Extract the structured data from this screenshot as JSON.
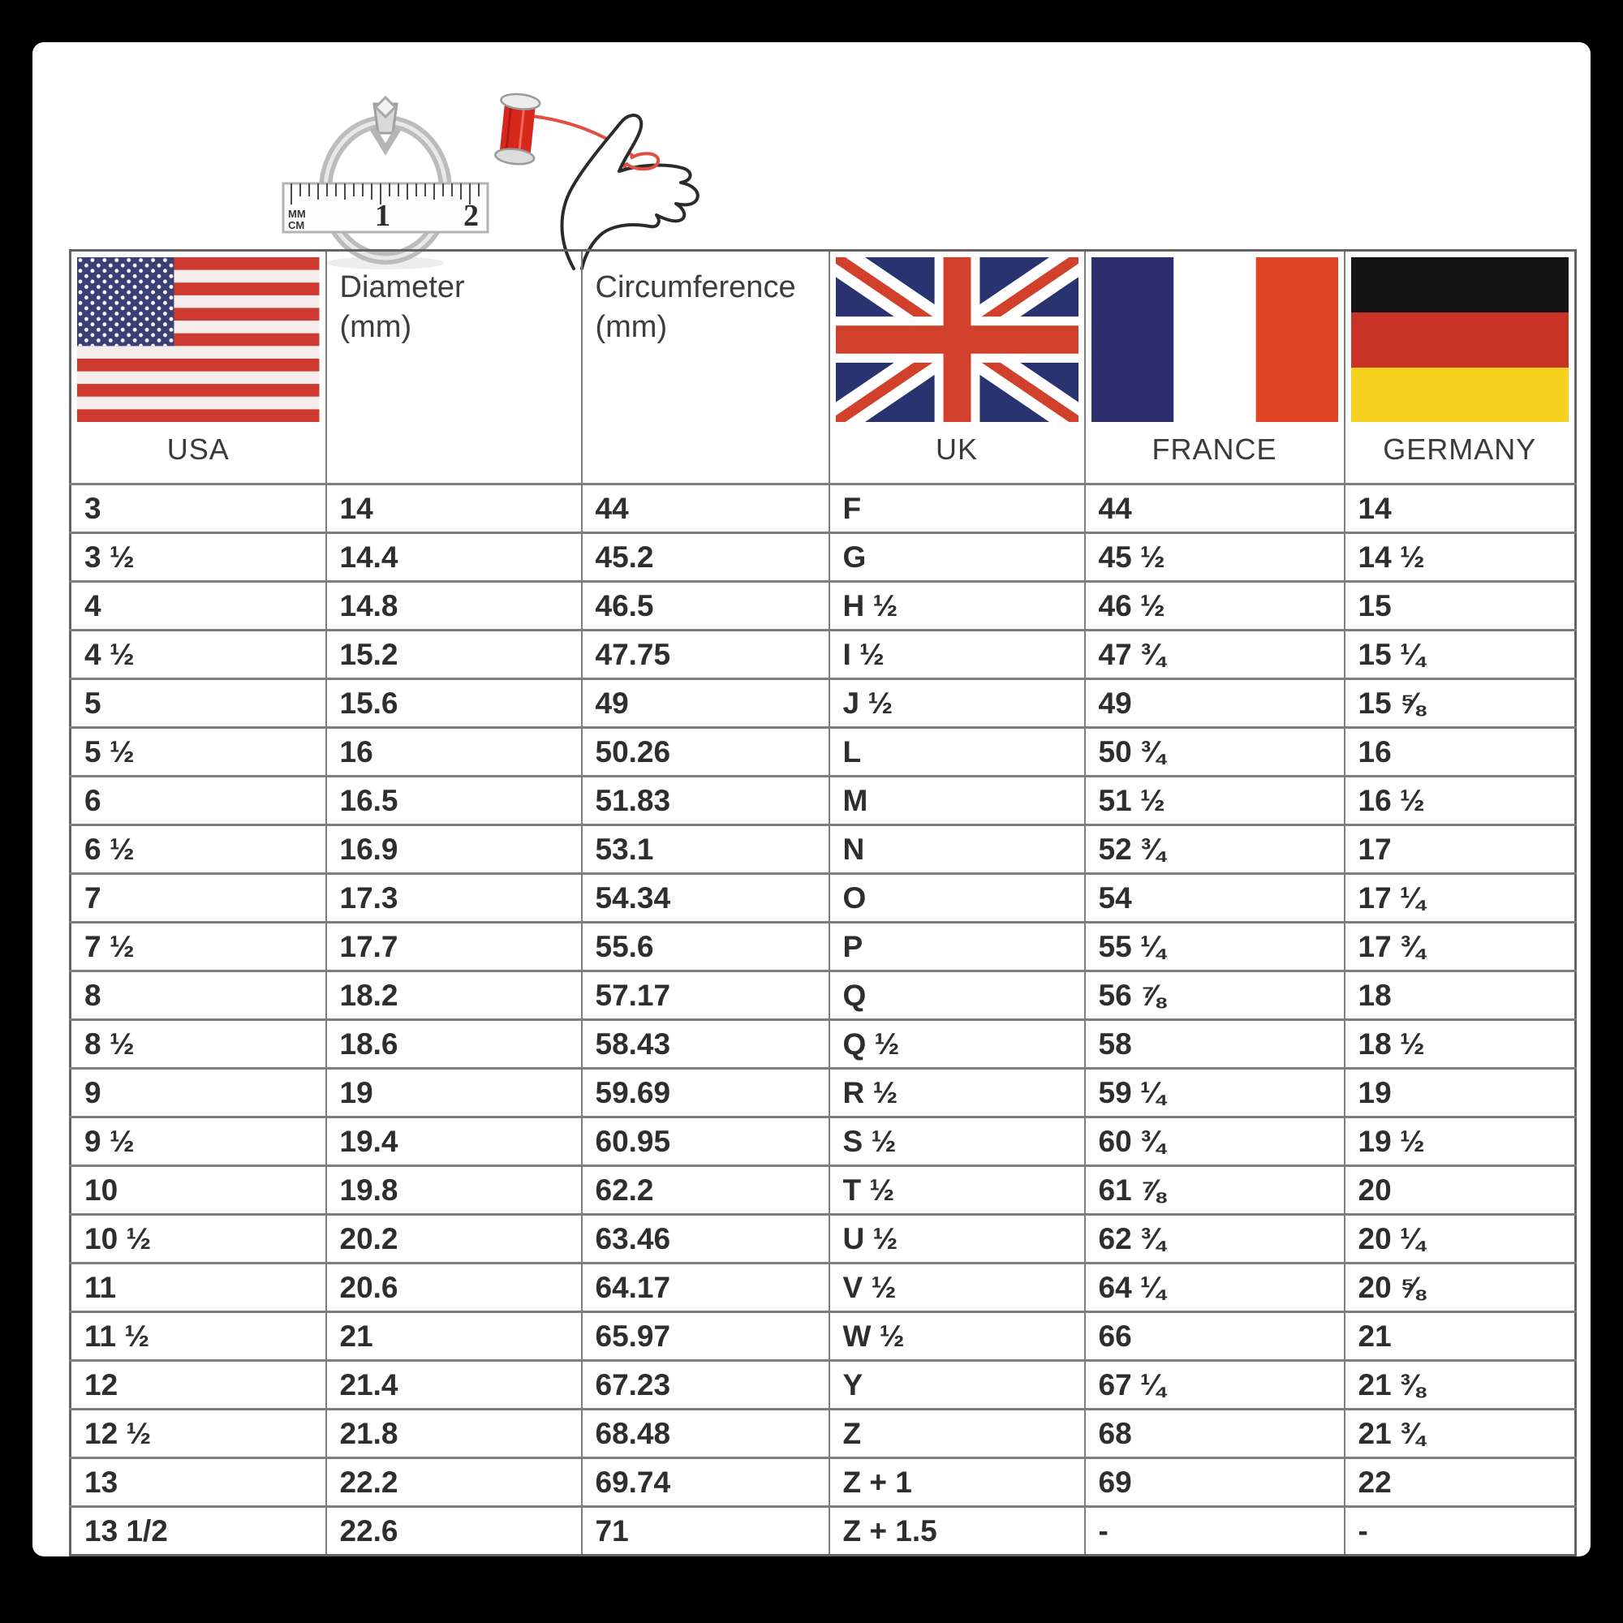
{
  "page": {
    "description": "International ring size conversion chart",
    "background_color": "#000000",
    "canvas_color": "#ffffff"
  },
  "illustrations": {
    "ring_ruler": {
      "icon": "ring-on-ruler-icon",
      "ruler_unit_top": "MM",
      "ruler_unit_bottom": "CM",
      "ruler_number_1": "1",
      "ruler_number_2": "2"
    },
    "hand_thread": {
      "icon": "hand-with-thread-icon",
      "thread_color": "#dd4a38",
      "spool_color": "#d6281c"
    }
  },
  "header": {
    "usa": "USA",
    "uk": "UK",
    "france": "FRANCE",
    "germany": "GERMANY",
    "diameter_line1": "Diameter",
    "diameter_line2": "(mm)",
    "circumference_line1": "Circumference",
    "circumference_line2": "(mm)"
  },
  "flag_colors": {
    "us_canton": "#3a3f75",
    "us_red": "#cf3a30",
    "uk_field": "#28336f",
    "uk_red": "#d0402a",
    "france_blue": "#2b2f6e",
    "france_red": "#e04425",
    "germany_black": "#141414",
    "germany_red": "#ca3426",
    "germany_gold": "#f6d21f"
  },
  "chart_data": {
    "type": "table",
    "columns": [
      "USA",
      "Diameter (mm)",
      "Circumference (mm)",
      "UK",
      "FRANCE",
      "GERMANY"
    ],
    "rows": [
      [
        "3",
        "14",
        "44",
        "F",
        "44",
        "14"
      ],
      [
        "3 ½",
        "14.4",
        "45.2",
        "G",
        "45 ½",
        "14 ½"
      ],
      [
        "4",
        "14.8",
        "46.5",
        "H ½",
        "46 ½",
        "15"
      ],
      [
        "4 ½",
        "15.2",
        "47.75",
        "I ½",
        "47 ¾",
        "15 ¼"
      ],
      [
        "5",
        "15.6",
        "49",
        "J ½",
        "49",
        "15 ⅝"
      ],
      [
        "5 ½",
        "16",
        "50.26",
        "L",
        "50 ¾",
        "16"
      ],
      [
        "6",
        "16.5",
        "51.83",
        "M",
        "51 ½",
        "16 ½"
      ],
      [
        "6 ½",
        "16.9",
        "53.1",
        "N",
        "52 ¾",
        "17"
      ],
      [
        "7",
        "17.3",
        "54.34",
        "O",
        "54",
        "17 ¼"
      ],
      [
        "7 ½",
        "17.7",
        "55.6",
        "P",
        "55 ¼",
        "17 ¾"
      ],
      [
        "8",
        "18.2",
        "57.17",
        "Q",
        "56 ⅞",
        "18"
      ],
      [
        "8 ½",
        "18.6",
        "58.43",
        "Q ½",
        "58",
        "18 ½"
      ],
      [
        "9",
        "19",
        "59.69",
        "R ½",
        "59 ¼",
        "19"
      ],
      [
        "9 ½",
        "19.4",
        "60.95",
        "S ½",
        "60 ¾",
        "19 ½"
      ],
      [
        "10",
        "19.8",
        "62.2",
        "T ½",
        "61 ⅞",
        "20"
      ],
      [
        "10 ½",
        "20.2",
        "63.46",
        "U ½",
        "62 ¾",
        "20 ¼"
      ],
      [
        "11",
        "20.6",
        "64.17",
        "V ½",
        "64 ¼",
        "20 ⅝"
      ],
      [
        "11 ½",
        "21",
        "65.97",
        "W ½",
        "66",
        "21"
      ],
      [
        "12",
        "21.4",
        "67.23",
        "Y",
        "67 ¼",
        "21 ⅜"
      ],
      [
        "12 ½",
        "21.8",
        "68.48",
        "Z",
        "68",
        "21 ¾"
      ],
      [
        "13",
        "22.2",
        "69.74",
        "Z + 1",
        "69",
        "22"
      ],
      [
        "13 1/2",
        "22.6",
        "71",
        "Z + 1.5",
        "-",
        "-"
      ]
    ]
  }
}
